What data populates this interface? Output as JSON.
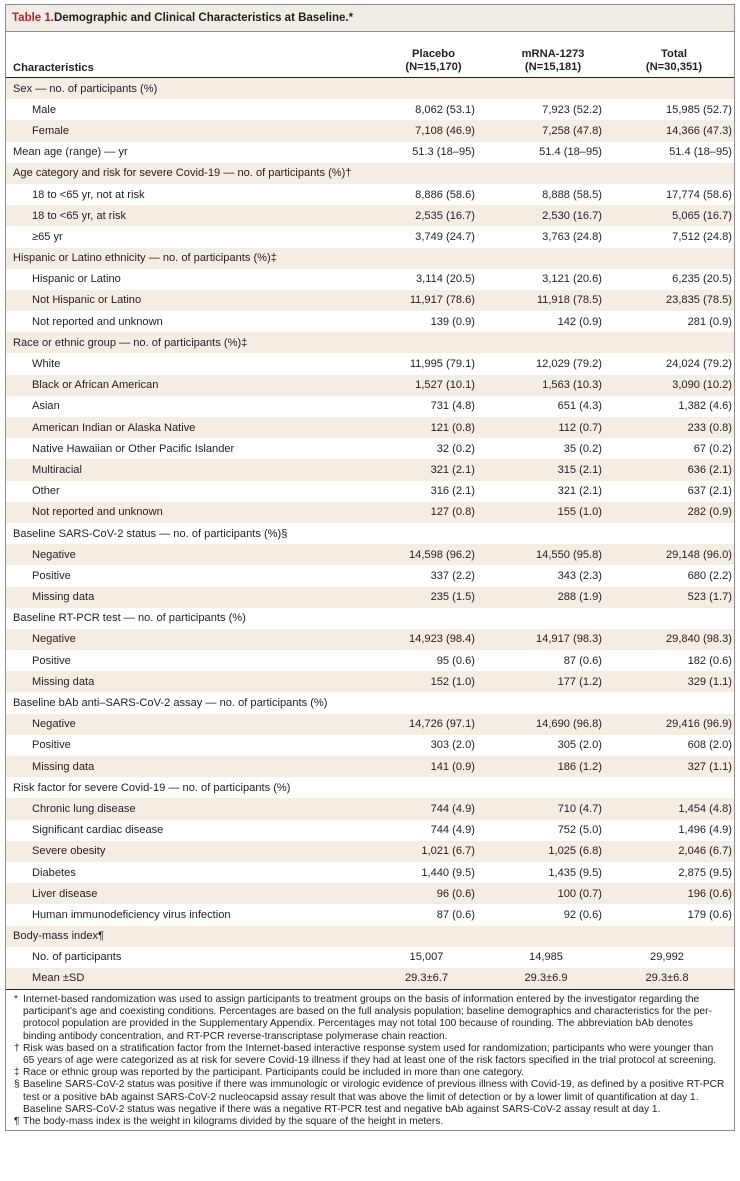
{
  "title": {
    "number": "Table 1.",
    "caption": " Demographic and Clinical Characteristics at Baseline.*"
  },
  "headers": {
    "characteristics": "Characteristics",
    "placebo": "Placebo",
    "placebo_n": "(N=15,170)",
    "mrna": "mRNA-1273",
    "mrna_n": "(N=15,181)",
    "total": "Total",
    "total_n": "(N=30,351)"
  },
  "rows": [
    {
      "label": "Sex — no. of participants (%)",
      "type": "category",
      "placebo": "",
      "mrna": "",
      "total": ""
    },
    {
      "label": "Male",
      "type": "sub",
      "placebo": "8,062 (53.1)",
      "mrna": "7,923 (52.2)",
      "total": "15,985 (52.7)"
    },
    {
      "label": "Female",
      "type": "sub",
      "placebo": "7,108 (46.9)",
      "mrna": "7,258 (47.8)",
      "total": "14,366 (47.3)"
    },
    {
      "label": "Mean age (range) — yr",
      "type": "category",
      "placebo": "51.3 (18–95)",
      "mrna": "51.4 (18–95)",
      "total": "51.4 (18–95)"
    },
    {
      "label": "Age category and risk for severe Covid-19 — no. of participants (%)†",
      "type": "category",
      "placebo": "",
      "mrna": "",
      "total": ""
    },
    {
      "label": "18 to <65 yr, not at risk",
      "type": "sub",
      "placebo": "8,886 (58.6)",
      "mrna": "8,888 (58.5)",
      "total": "17,774 (58.6)"
    },
    {
      "label": "18 to <65 yr, at risk",
      "type": "sub",
      "placebo": "2,535 (16.7)",
      "mrna": "2,530 (16.7)",
      "total": "5,065 (16.7)"
    },
    {
      "label": "≥65 yr",
      "type": "sub",
      "placebo": "3,749 (24.7)",
      "mrna": "3,763 (24.8)",
      "total": "7,512 (24.8)"
    },
    {
      "label": "Hispanic or Latino ethnicity — no. of participants (%)‡",
      "type": "category",
      "placebo": "",
      "mrna": "",
      "total": ""
    },
    {
      "label": "Hispanic or Latino",
      "type": "sub",
      "placebo": "3,114 (20.5)",
      "mrna": "3,121 (20.6)",
      "total": "6,235 (20.5)"
    },
    {
      "label": "Not Hispanic or Latino",
      "type": "sub",
      "placebo": "11,917 (78.6)",
      "mrna": "11,918 (78.5)",
      "total": "23,835 (78.5)"
    },
    {
      "label": "Not reported and unknown",
      "type": "sub",
      "placebo": "139 (0.9)",
      "mrna": "142 (0.9)",
      "total": "281 (0.9)"
    },
    {
      "label": "Race or ethnic group — no. of participants (%)‡",
      "type": "category",
      "placebo": "",
      "mrna": "",
      "total": ""
    },
    {
      "label": "White",
      "type": "sub",
      "placebo": "11,995 (79.1)",
      "mrna": "12,029 (79.2)",
      "total": "24,024 (79.2)"
    },
    {
      "label": "Black or African American",
      "type": "sub",
      "placebo": "1,527 (10.1)",
      "mrna": "1,563 (10.3)",
      "total": "3,090 (10.2)"
    },
    {
      "label": "Asian",
      "type": "sub",
      "placebo": "731 (4.8)",
      "mrna": "651 (4.3)",
      "total": "1,382 (4.6)"
    },
    {
      "label": "American Indian or Alaska Native",
      "type": "sub",
      "placebo": "121 (0.8)",
      "mrna": "112 (0.7)",
      "total": "233 (0.8)"
    },
    {
      "label": "Native Hawaiian or Other Pacific Islander",
      "type": "sub",
      "placebo": "32 (0.2)",
      "mrna": "35 (0.2)",
      "total": "67 (0.2)"
    },
    {
      "label": "Multiracial",
      "type": "sub",
      "placebo": "321 (2.1)",
      "mrna": "315 (2.1)",
      "total": "636 (2.1)"
    },
    {
      "label": "Other",
      "type": "sub",
      "placebo": "316 (2.1)",
      "mrna": "321 (2.1)",
      "total": "637 (2.1)"
    },
    {
      "label": "Not reported and unknown",
      "type": "sub",
      "placebo": "127 (0.8)",
      "mrna": "155 (1.0)",
      "total": "282 (0.9)"
    },
    {
      "label": "Baseline SARS-CoV-2 status — no. of participants (%)§",
      "type": "category",
      "placebo": "",
      "mrna": "",
      "total": ""
    },
    {
      "label": "Negative",
      "type": "sub",
      "placebo": "14,598 (96.2)",
      "mrna": "14,550 (95.8)",
      "total": "29,148 (96.0)"
    },
    {
      "label": "Positive",
      "type": "sub",
      "placebo": "337 (2.2)",
      "mrna": "343 (2.3)",
      "total": "680 (2.2)"
    },
    {
      "label": "Missing data",
      "type": "sub",
      "placebo": "235 (1.5)",
      "mrna": "288 (1.9)",
      "total": "523 (1.7)"
    },
    {
      "label": "Baseline RT-PCR test — no. of participants (%)",
      "type": "category",
      "placebo": "",
      "mrna": "",
      "total": ""
    },
    {
      "label": "Negative",
      "type": "sub",
      "placebo": "14,923 (98.4)",
      "mrna": "14,917 (98.3)",
      "total": "29,840 (98.3)"
    },
    {
      "label": "Positive",
      "type": "sub",
      "placebo": "95 (0.6)",
      "mrna": "87 (0.6)",
      "total": "182 (0.6)"
    },
    {
      "label": "Missing data",
      "type": "sub",
      "placebo": "152 (1.0)",
      "mrna": "177 (1.2)",
      "total": "329 (1.1)"
    },
    {
      "label": "Baseline bAb anti–SARS-CoV-2 assay — no. of participants (%)",
      "type": "category",
      "placebo": "",
      "mrna": "",
      "total": ""
    },
    {
      "label": "Negative",
      "type": "sub",
      "placebo": "14,726 (97.1)",
      "mrna": "14,690 (96.8)",
      "total": "29,416 (96.9)"
    },
    {
      "label": "Positive",
      "type": "sub",
      "placebo": "303 (2.0)",
      "mrna": "305 (2.0)",
      "total": "608 (2.0)"
    },
    {
      "label": "Missing data",
      "type": "sub",
      "placebo": "141 (0.9)",
      "mrna": "186 (1.2)",
      "total": "327 (1.1)"
    },
    {
      "label": "Risk factor for severe Covid-19 — no. of participants (%)",
      "type": "category",
      "placebo": "",
      "mrna": "",
      "total": ""
    },
    {
      "label": "Chronic lung disease",
      "type": "sub",
      "placebo": "744 (4.9)",
      "mrna": "710 (4.7)",
      "total": "1,454 (4.8)"
    },
    {
      "label": "Significant cardiac disease",
      "type": "sub",
      "placebo": "744 (4.9)",
      "mrna": "752 (5.0)",
      "total": "1,496 (4.9)"
    },
    {
      "label": "Severe obesity",
      "type": "sub",
      "placebo": "1,021 (6.7)",
      "mrna": "1,025 (6.8)",
      "total": "2,046 (6.7)"
    },
    {
      "label": "Diabetes",
      "type": "sub",
      "placebo": "1,440 (9.5)",
      "mrna": "1,435 (9.5)",
      "total": "2,875 (9.5)"
    },
    {
      "label": "Liver disease",
      "type": "sub",
      "placebo": "96 (0.6)",
      "mrna": "100 (0.7)",
      "total": "196 (0.6)"
    },
    {
      "label": "Human immunodeficiency virus infection",
      "type": "sub",
      "placebo": "87 (0.6)",
      "mrna": "92 (0.6)",
      "total": "179 (0.6)"
    },
    {
      "label": "Body-mass index¶",
      "type": "category",
      "placebo": "",
      "mrna": "",
      "total": ""
    },
    {
      "label": "No. of participants",
      "type": "sub",
      "placebo": "15,007",
      "mrna": "14,985",
      "total": "29,992",
      "centered": true
    },
    {
      "label": "Mean ±SD",
      "type": "sub",
      "placebo": "29.3±6.7",
      "mrna": "29.3±6.9",
      "total": "29.3±6.8",
      "centered": true
    }
  ],
  "footnotes": [
    {
      "symbol": "*",
      "text": "Internet-based randomization was used to assign participants to treatment groups on the basis of information entered by the investigator regarding the participant's age and coexisting conditions. Percentages are based on the full analysis population; baseline demographics and characteristics for the per-protocol population are provided in the Supplementary Appendix. Percentages may not total 100 because of rounding. The abbreviation bAb denotes binding antibody concentration, and RT-PCR reverse-transcriptase polymerase chain reaction."
    },
    {
      "symbol": "†",
      "text": "Risk was based on a stratification factor from the Internet-based interactive response system used for randomization; participants who were younger than 65 years of age were categorized as at risk for severe Covid-19 illness if they had at least one of the risk factors specified in the trial protocol at screening."
    },
    {
      "symbol": "‡",
      "text": "Race or ethnic group was reported by the participant. Participants could be included in more than one category."
    },
    {
      "symbol": "§",
      "text": "Baseline SARS-CoV-2 status was positive if there was immunologic or virologic evidence of previous illness with Covid-19, as defined by a positive RT-PCR test or a positive bAb against SARS-CoV-2 nucleocapsid assay result that was above the limit of detection or by a lower limit of quantification at day 1. Baseline SARS-CoV-2 status was negative if there was a negative RT-PCR test and negative bAb against SARS-CoV-2 assay result at day 1."
    },
    {
      "symbol": "¶",
      "text": "The body-mass index is the weight in kilograms divided by the square of the height in meters."
    }
  ],
  "colors": {
    "title_red": "#b2262b",
    "title_bg": "#f0ece6",
    "row_shade": "#f4ede4"
  }
}
